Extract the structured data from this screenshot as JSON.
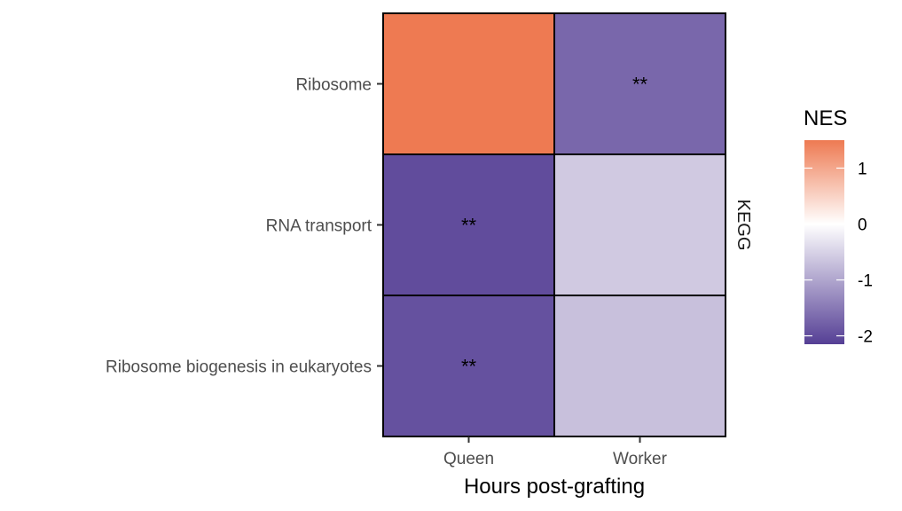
{
  "chart_data": {
    "type": "heatmap",
    "title": "",
    "xlabel": "Hours post-grafting",
    "ylabel": "",
    "x_categories": [
      "Queen",
      "Worker"
    ],
    "y_categories": [
      "Ribosome",
      "RNA transport",
      "Ribosome biogenesis in eukaryotes"
    ],
    "facet_label": "KEGG",
    "cells": [
      {
        "x": "Queen",
        "y": "Ribosome",
        "value": 1.5,
        "label": ""
      },
      {
        "x": "Worker",
        "y": "Ribosome",
        "value": -1.7,
        "label": "**"
      },
      {
        "x": "Queen",
        "y": "RNA transport",
        "value": -2.0,
        "label": "**"
      },
      {
        "x": "Worker",
        "y": "RNA transport",
        "value": -0.6,
        "label": ""
      },
      {
        "x": "Queen",
        "y": "Ribosome biogenesis in eukaryotes",
        "value": -1.95,
        "label": "**"
      },
      {
        "x": "Worker",
        "y": "Ribosome biogenesis in eukaryotes",
        "value": -0.7,
        "label": ""
      }
    ],
    "legend": {
      "title": "NES",
      "range": [
        -2.15,
        1.5
      ],
      "ticks": [
        1,
        0,
        -1,
        -2
      ],
      "tick_labels": [
        "1",
        "0",
        "-1",
        "-2"
      ],
      "colors": {
        "low": "#553f95",
        "mid": "#ffffff",
        "high": "#ee7a52"
      },
      "placement": "right"
    }
  }
}
